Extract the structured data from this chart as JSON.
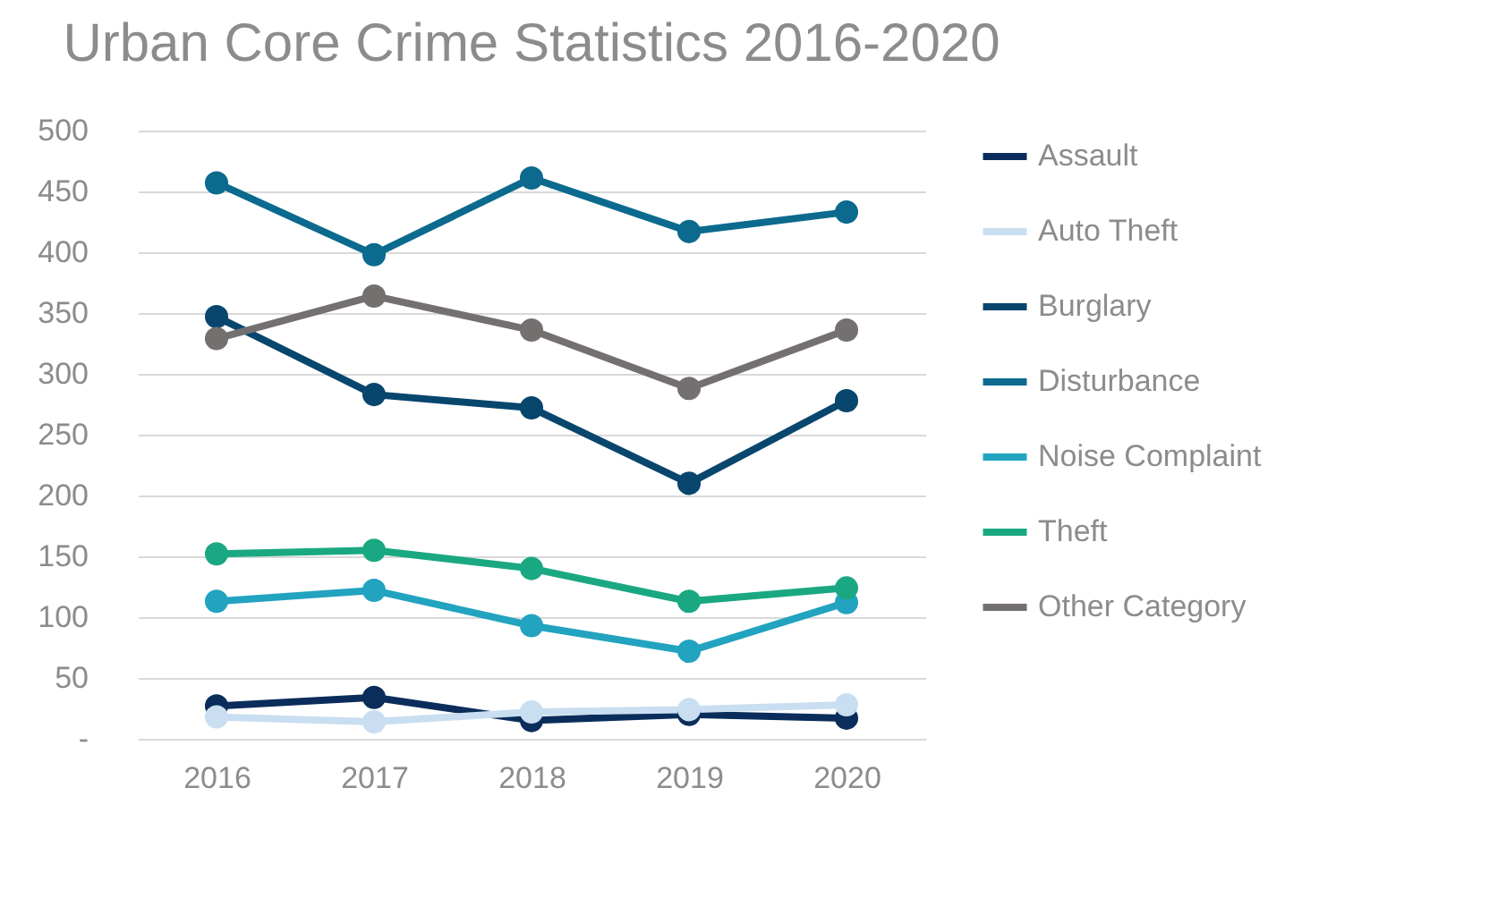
{
  "chart_data": {
    "type": "line",
    "title": "Urban Core Crime Statistics 2016-2020",
    "categories": [
      "2016",
      "2017",
      "2018",
      "2019",
      "2020"
    ],
    "series": [
      {
        "name": "Assault",
        "color": "#0b2d5b",
        "values": [
          27,
          34,
          15,
          20,
          17
        ]
      },
      {
        "name": "Auto Theft",
        "color": "#c9def0",
        "values": [
          18,
          14,
          22,
          24,
          28
        ]
      },
      {
        "name": "Burglary",
        "color": "#08466e",
        "values": [
          347,
          283,
          272,
          210,
          278
        ]
      },
      {
        "name": "Disturbance",
        "color": "#0b6a8e",
        "values": [
          457,
          398,
          461,
          417,
          433
        ]
      },
      {
        "name": "Noise Complaint",
        "color": "#22a3c0",
        "values": [
          113,
          122,
          93,
          72,
          112
        ]
      },
      {
        "name": "Theft",
        "color": "#1aa882",
        "values": [
          152,
          155,
          140,
          113,
          124
        ]
      },
      {
        "name": "Other Category",
        "color": "#747070",
        "values": [
          329,
          364,
          336,
          288,
          336
        ]
      }
    ],
    "ylim": [
      0,
      500
    ],
    "yticks": [
      {
        "value": 0,
        "label": "-"
      },
      50,
      100,
      150,
      200,
      250,
      300,
      350,
      400,
      450,
      500
    ],
    "grid": "y",
    "legend": "right",
    "marker": "circle",
    "line_style": "solid"
  }
}
